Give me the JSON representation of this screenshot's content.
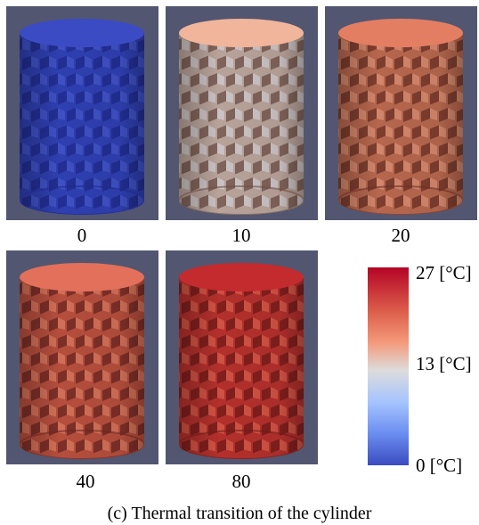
{
  "panels": [
    {
      "label": "0",
      "side": "#2f3fb0",
      "dark": "#1f2a8a",
      "light": "#4d5fd4",
      "top": "#3b4bc4"
    },
    {
      "label": "10",
      "side": "#b8a39a",
      "dark": "#6e4e44",
      "light": "#d9dde6",
      "top": "#f0b59a"
    },
    {
      "label": "20",
      "side": "#b6674e",
      "dark": "#6a2f24",
      "light": "#e9a184",
      "top": "#e47e63"
    },
    {
      "label": "40",
      "side": "#b54e3d",
      "dark": "#6a2620",
      "light": "#e58a6d",
      "top": "#e2705a"
    },
    {
      "label": "80",
      "side": "#b3302c",
      "dark": "#6f1a18",
      "light": "#e66f58",
      "top": "#c42b2e"
    }
  ],
  "colorbar": {
    "max_label": "27 [°C]",
    "mid_label": "13 [°C]",
    "min_label": "0 [°C]",
    "colors": [
      "#b40426",
      "#dddcdc",
      "#3b4cc0"
    ]
  },
  "caption": "(c) Thermal transition of the cylinder"
}
